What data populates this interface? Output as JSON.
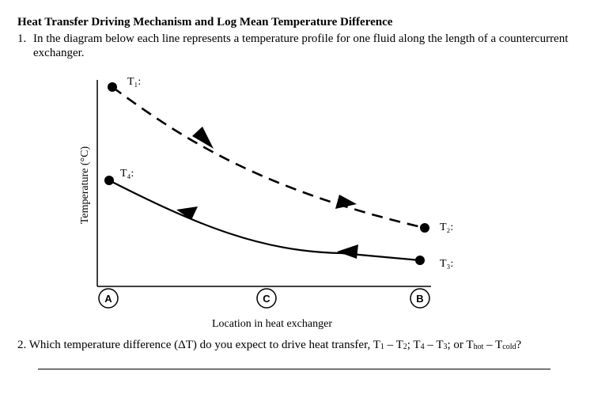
{
  "title": "Heat Transfer Driving Mechanism and Log Mean Temperature Difference",
  "question1": {
    "number": "1.",
    "text": "In the diagram below each line represents a temperature profile for one fluid along the length of a countercurrent exchanger."
  },
  "diagram": {
    "y_axis_label": "Temperature (°C)",
    "x_axis_label": "Location in heat exchanger",
    "points": {
      "t1": "T₁:",
      "t2": "T₂:",
      "t3": "T₃:",
      "t4": "T₄:"
    },
    "locations": [
      "A",
      "C",
      "B"
    ]
  },
  "question2": {
    "number": "2.",
    "text_prefix": "Which temperature difference (ΔT) do you expect to drive heat transfer, T",
    "t1_sub": "1",
    "mid1": " – T",
    "t2_sub": "2",
    "mid2": "; T",
    "t4_sub": "4",
    "mid3": " – T",
    "t3_sub": "3",
    "mid4": "; or T",
    "hot_sub": "hot",
    "mid5": " – T",
    "cold_sub": "cold",
    "end": "?"
  }
}
